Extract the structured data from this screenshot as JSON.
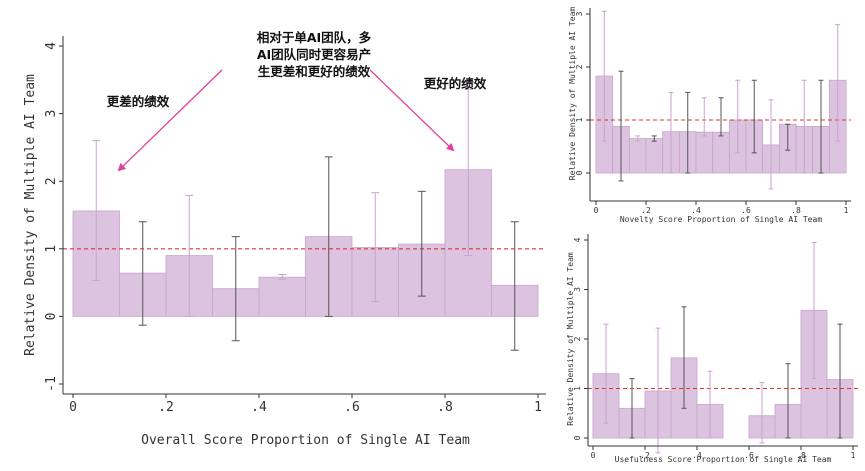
{
  "chart_data": [
    {
      "type": "bar",
      "xlabel": "Overall Score Proportion of Single AI Team",
      "ylabel": "Relative Density of Multiple AI Team",
      "xlim": [
        0,
        1
      ],
      "ylim": [
        -1,
        4
      ],
      "xticks": [
        "0",
        ".2",
        ".4",
        ".6",
        ".8",
        "1"
      ],
      "yticks": [
        "-1",
        "0",
        "1",
        "2",
        "3",
        "4"
      ],
      "reference_line": 1,
      "bins": [
        0.05,
        0.15,
        0.25,
        0.35,
        0.45,
        0.55,
        0.65,
        0.75,
        0.85,
        0.95
      ],
      "values": [
        1.56,
        0.64,
        0.9,
        0.41,
        0.58,
        1.18,
        1.02,
        1.07,
        2.17,
        0.46
      ],
      "ci_low": [
        0.53,
        -0.13,
        0.0,
        -0.36,
        0.55,
        0.0,
        0.22,
        0.3,
        0.9,
        -0.5
      ],
      "ci_high": [
        2.6,
        1.4,
        1.79,
        1.18,
        0.62,
        2.36,
        1.83,
        1.85,
        3.36,
        1.4
      ],
      "annotations": {
        "top": [
          "相对于单AI团队，多",
          "AI团队同时更容易产",
          "生更差和更好的绩效"
        ],
        "left": "更差的绩效",
        "right": "更好的绩效"
      }
    },
    {
      "type": "bar",
      "xlabel": "Novelty Score Proportion of Single AI Team",
      "ylabel": "Relative Density of Multiple AI Team",
      "xlim": [
        0,
        1
      ],
      "ylim": [
        0,
        3
      ],
      "xticks": [
        "0",
        ".2",
        ".4",
        ".6",
        ".8",
        "1"
      ],
      "yticks": [
        "0",
        "1",
        "2",
        "3"
      ],
      "reference_line": 1,
      "bins": [
        0.033,
        0.1,
        0.167,
        0.233,
        0.3,
        0.367,
        0.433,
        0.5,
        0.567,
        0.633,
        0.7,
        0.767,
        0.833,
        0.9,
        0.967
      ],
      "values": [
        1.83,
        0.88,
        0.65,
        0.65,
        0.78,
        0.78,
        0.77,
        0.77,
        1.0,
        1.0,
        0.53,
        0.92,
        0.88,
        0.88,
        1.75
      ],
      "ci_low": [
        0.6,
        -0.15,
        0.6,
        0.6,
        0.0,
        0.0,
        0.7,
        0.7,
        0.38,
        0.38,
        -0.3,
        0.43,
        0.0,
        0.0,
        0.6
      ],
      "ci_high": [
        3.05,
        1.92,
        0.7,
        0.7,
        1.52,
        1.52,
        1.42,
        1.42,
        1.75,
        1.75,
        1.38,
        0.92,
        1.75,
        1.75,
        2.8
      ]
    },
    {
      "type": "bar",
      "xlabel": "Usefulness Score Proportion of Single AI Team",
      "ylabel": "Relative Density of Multiple AI Team",
      "xlim": [
        0,
        1
      ],
      "ylim": [
        0,
        4
      ],
      "xticks": [
        "0",
        ".2",
        ".4",
        ".6",
        ".8",
        "1"
      ],
      "yticks": [
        "0",
        "1",
        "2",
        "3",
        "4"
      ],
      "reference_line": 1,
      "bins": [
        0.05,
        0.15,
        0.25,
        0.35,
        0.45,
        0.55,
        0.65,
        0.75,
        0.85,
        0.95
      ],
      "values": [
        1.3,
        0.6,
        0.95,
        1.62,
        0.68,
        0.0,
        0.45,
        0.68,
        2.58,
        1.18
      ],
      "ci_low": [
        0.3,
        0.0,
        -0.3,
        0.6,
        0.0,
        0.0,
        -0.1,
        0.0,
        1.2,
        0.0
      ],
      "ci_high": [
        2.3,
        1.2,
        2.22,
        2.65,
        1.35,
        0.0,
        1.12,
        1.5,
        3.95,
        2.3
      ]
    }
  ]
}
